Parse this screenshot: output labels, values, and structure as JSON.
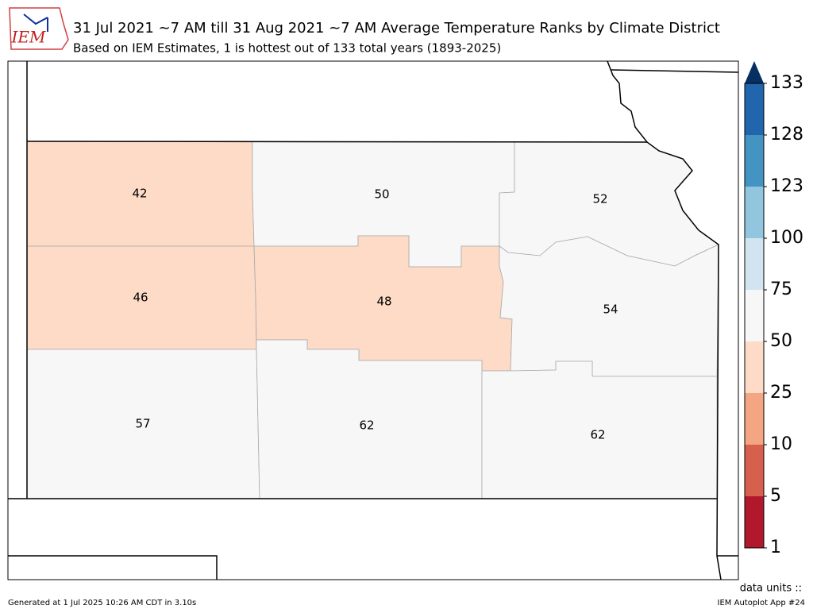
{
  "title": "31 Jul 2021 ~7 AM till 31 Aug 2021 ~7 AM Average Temperature Ranks by Climate District",
  "subtitle": "Based on IEM Estimates, 1 is hottest out of 133 total years (1893-2025)",
  "logo": "IEM",
  "districts": [
    {
      "rank": 42
    },
    {
      "rank": 50
    },
    {
      "rank": 52
    },
    {
      "rank": 46
    },
    {
      "rank": 48
    },
    {
      "rank": 54
    },
    {
      "rank": 57
    },
    {
      "rank": 62
    },
    {
      "rank": 62
    }
  ],
  "colorbar": {
    "ticks": [
      1,
      5,
      10,
      25,
      50,
      75,
      100,
      123,
      128,
      133
    ],
    "colors": [
      "#b2182b",
      "#d6604d",
      "#f4a582",
      "#fddbc7",
      "#f7f7f7",
      "#d1e5f0",
      "#92c5de",
      "#4393c3",
      "#2166ac"
    ],
    "extend_color": "#053061"
  },
  "units_label": "data units ::",
  "footer_left": "Generated at 1 Jul 2025 10:26 AM CDT in 3.10s",
  "footer_right": "IEM Autoplot App #24"
}
